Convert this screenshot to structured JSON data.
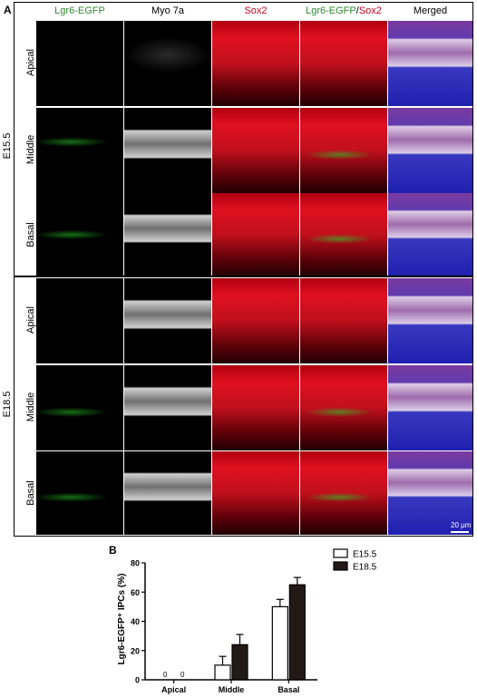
{
  "panel_a": {
    "letter": "A",
    "columns": [
      {
        "label": "Lgr6-EGFP",
        "color": "green"
      },
      {
        "label": "Myo 7a",
        "color": "black"
      },
      {
        "label": "Sox2",
        "color": "red"
      },
      {
        "label_green": "Lgr6-EGFP",
        "separator": "/",
        "label_red": "Sox2",
        "color": "mixed"
      },
      {
        "label": "Merged",
        "color": "black"
      }
    ],
    "stages": [
      "E15.5",
      "E18.5"
    ],
    "rows": [
      "Apical",
      "Middle",
      "Basal"
    ],
    "scale_bar": "20 μm"
  },
  "panel_b": {
    "letter": "B",
    "chart_data": {
      "type": "bar",
      "ylabel": "Lgr6-EGFP⁺ IPCs (%)",
      "xlabel": "",
      "categories": [
        "Apical",
        "Middle",
        "Basal"
      ],
      "ylim": [
        0,
        80
      ],
      "yticks": [
        0,
        20,
        40,
        60,
        80
      ],
      "legend_position": "top-right",
      "series": [
        {
          "name": "E15.5",
          "values": [
            0,
            10,
            50
          ],
          "errors": [
            0,
            6,
            5
          ],
          "fill": "#ffffff"
        },
        {
          "name": "E18.5",
          "values": [
            0,
            24,
            65
          ],
          "errors": [
            0,
            7,
            5
          ],
          "fill": "#231a17"
        }
      ],
      "zero_labels": [
        "0",
        "0"
      ]
    }
  }
}
